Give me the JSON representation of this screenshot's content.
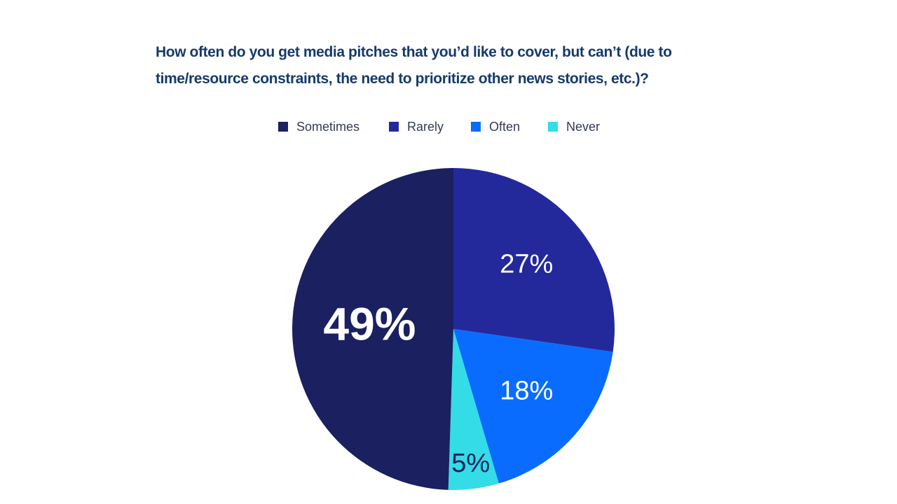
{
  "chart_data": {
    "type": "pie",
    "title": "How often do you get media pitches that you’d like to cover, but can’t (due to time/resource constraints, the need to prioritize other news stories, etc.)?",
    "categories": [
      "Sometimes",
      "Rarely",
      "Often",
      "Never"
    ],
    "values": [
      49,
      27,
      18,
      5
    ],
    "value_labels": [
      "49%",
      "27%",
      "18%",
      "5%"
    ],
    "colors": [
      "#1a2060",
      "#23299b",
      "#0a6cff",
      "#33dce6"
    ],
    "legend": "top"
  }
}
